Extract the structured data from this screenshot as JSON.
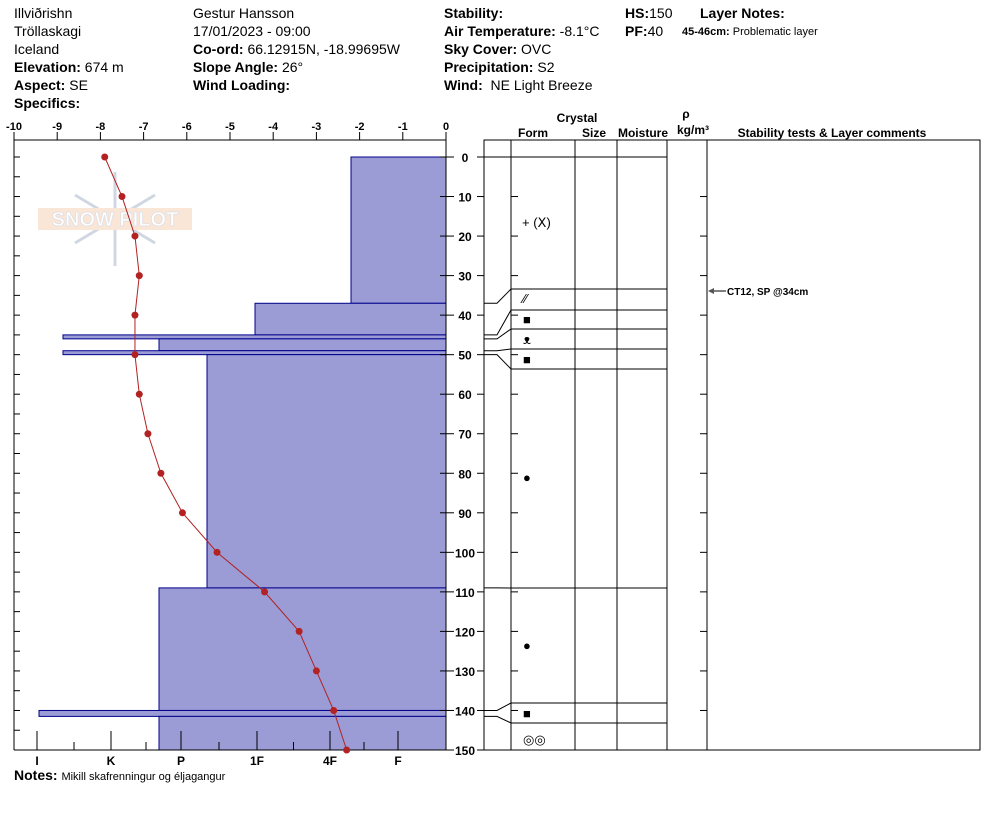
{
  "header": {
    "location": [
      "Illviðrishn",
      "Tröllaskagi",
      "Iceland"
    ],
    "elevation_label": "Elevation:",
    "elevation": "674 m",
    "aspect_label": "Aspect:",
    "aspect": "SE",
    "specifics_label": "Specifics:",
    "observer": "Gestur Hansson",
    "datetime": "17/01/2023 - 09:00",
    "coord_label": "Co-ord:",
    "coord": "66.12915N, -18.99695W",
    "slope_label": "Slope Angle:",
    "slope": "26°",
    "wind_loading_label": "Wind Loading:",
    "stability_label": "Stability:",
    "air_temp_label": "Air Temperature:",
    "air_temp": "-8.1°C",
    "sky_label": "Sky Cover:",
    "sky": "OVC",
    "precip_label": "Precipitation:",
    "precip": "S2",
    "wind_label": "Wind:",
    "wind": "NE Light Breeze",
    "hs_label": "HS:",
    "hs": "150",
    "pf_label": "PF:",
    "pf": "40",
    "layer_notes_label": "Layer Notes:",
    "layer_note_depth": "45-46cm:",
    "layer_note_text": "Problematic layer"
  },
  "notes_label": "Notes:",
  "notes": "Mikill skafrenningur og éljagangur",
  "table_header": {
    "crystal": "Crystal",
    "form": "Form",
    "size": "Size",
    "moisture": "Moisture",
    "rho": "ρ",
    "density_unit": "kg/m³",
    "comments": "Stability tests & Layer comments"
  },
  "watermark": "SNOW PILOT",
  "colors": {
    "hardness_fill": "#9b9bd6",
    "hardness_stroke": "#00008b",
    "temperature": "#b22222"
  },
  "chart_data": {
    "type": "snow-profile",
    "temperature_axis": {
      "range": [
        -10,
        0
      ],
      "ticks": [
        "-10",
        "-9",
        "-8",
        "-7",
        "-6",
        "-5",
        "-4",
        "-3",
        "-2",
        "-1",
        "0"
      ]
    },
    "depth_axis": {
      "range": [
        0,
        150
      ],
      "ticks": [
        "0",
        "10",
        "20",
        "30",
        "40",
        "50",
        "60",
        "70",
        "80",
        "90",
        "100",
        "110",
        "120",
        "130",
        "140",
        "150"
      ]
    },
    "hardness_axis": {
      "ticks": [
        "I",
        "K",
        "P",
        "1F",
        "4F",
        "F"
      ]
    },
    "hardness_layers": [
      {
        "top": 0,
        "bottom": 37,
        "hardness": "4F+"
      },
      {
        "top": 37,
        "bottom": 45,
        "hardness": "1F"
      },
      {
        "top": 45,
        "bottom": 46,
        "hardness": "K+"
      },
      {
        "top": 46,
        "bottom": 49,
        "hardness": "P-"
      },
      {
        "top": 49,
        "bottom": 50,
        "hardness": "K+"
      },
      {
        "top": 50,
        "bottom": 109,
        "hardness": "P+"
      },
      {
        "top": 109,
        "bottom": 140,
        "hardness": "P-"
      },
      {
        "top": 140,
        "bottom": 141.5,
        "hardness": "I-"
      },
      {
        "top": 141.5,
        "bottom": 150,
        "hardness": "P-"
      }
    ],
    "temperature_profile": [
      {
        "depth": 0,
        "temp": -7.9
      },
      {
        "depth": 10,
        "temp": -7.5
      },
      {
        "depth": 20,
        "temp": -7.2
      },
      {
        "depth": 30,
        "temp": -7.1
      },
      {
        "depth": 40,
        "temp": -7.2
      },
      {
        "depth": 50,
        "temp": -7.2
      },
      {
        "depth": 60,
        "temp": -7.1
      },
      {
        "depth": 70,
        "temp": -6.9
      },
      {
        "depth": 80,
        "temp": -6.6
      },
      {
        "depth": 90,
        "temp": -6.1
      },
      {
        "depth": 100,
        "temp": -5.3
      },
      {
        "depth": 110,
        "temp": -4.2
      },
      {
        "depth": 120,
        "temp": -3.4
      },
      {
        "depth": 130,
        "temp": -3.0
      },
      {
        "depth": 140,
        "temp": -2.6
      },
      {
        "depth": 150,
        "temp": -2.3
      }
    ],
    "crystal_forms": [
      {
        "depth": 20,
        "form": "+ (ⵝ)"
      },
      {
        "depth": 40,
        "form": "⁄⁄"
      },
      {
        "depth": 45.5,
        "form": "■"
      },
      {
        "depth": 47.5,
        "form": "ᴥ"
      },
      {
        "depth": 49.5,
        "form": "■"
      },
      {
        "depth": 80,
        "form": "●"
      },
      {
        "depth": 125,
        "form": "●"
      },
      {
        "depth": 141,
        "form": "■"
      },
      {
        "depth": 146,
        "form": "◎◎"
      }
    ],
    "stability_comments": [
      {
        "depth": 34,
        "text": "CT12, SP @34cm"
      }
    ]
  }
}
